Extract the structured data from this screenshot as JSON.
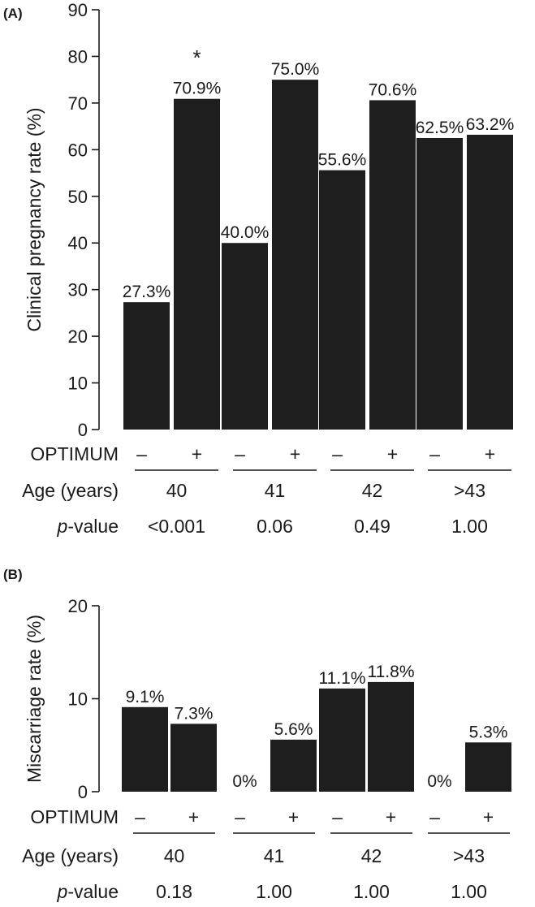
{
  "chart_data": [
    {
      "panel_label": "(A)",
      "type": "bar",
      "ylabel": "Clinical pregnancy rate (%)",
      "ylim": [
        0,
        90
      ],
      "yticks": [
        "0",
        "10",
        "20",
        "30",
        "40",
        "50",
        "60",
        "70",
        "80",
        "90"
      ],
      "optimum_label": "OPTIMUM",
      "optimum_signs": [
        "–",
        "+"
      ],
      "age_label": "Age (years)",
      "pvalue_prefix": "p",
      "pvalue_suffix": "-value",
      "groups": [
        {
          "age": "40",
          "p_value": "<0.001",
          "star": "*",
          "minus": {
            "value": 27.3,
            "label": "27.3%"
          },
          "plus": {
            "value": 70.9,
            "label": "70.9%"
          }
        },
        {
          "age": "41",
          "p_value": "0.06",
          "star": "",
          "minus": {
            "value": 40.0,
            "label": "40.0%"
          },
          "plus": {
            "value": 75.0,
            "label": "75.0%"
          }
        },
        {
          "age": "42",
          "p_value": "0.49",
          "star": "",
          "minus": {
            "value": 55.6,
            "label": "55.6%"
          },
          "plus": {
            "value": 70.6,
            "label": "70.6%"
          }
        },
        {
          "age": ">43",
          "p_value": "1.00",
          "star": "",
          "minus": {
            "value": 62.5,
            "label": "62.5%"
          },
          "plus": {
            "value": 63.2,
            "label": "63.2%"
          }
        }
      ]
    },
    {
      "panel_label": "(B)",
      "type": "bar",
      "ylabel": "Miscarriage rate (%)",
      "ylim": [
        0,
        20
      ],
      "yticks": [
        "0",
        "10",
        "20"
      ],
      "optimum_label": "OPTIMUM",
      "optimum_signs": [
        "–",
        "+"
      ],
      "age_label": "Age (years)",
      "pvalue_prefix": "p",
      "pvalue_suffix": "-value",
      "groups": [
        {
          "age": "40",
          "p_value": "0.18",
          "star": "",
          "minus": {
            "value": 9.1,
            "label": "9.1%"
          },
          "plus": {
            "value": 7.3,
            "label": "7.3%"
          }
        },
        {
          "age": "41",
          "p_value": "1.00",
          "star": "",
          "minus": {
            "value": 0,
            "label": "0%"
          },
          "plus": {
            "value": 5.6,
            "label": "5.6%"
          }
        },
        {
          "age": "42",
          "p_value": "1.00",
          "star": "",
          "minus": {
            "value": 11.1,
            "label": "11.1%"
          },
          "plus": {
            "value": 11.8,
            "label": "11.8%"
          }
        },
        {
          "age": ">43",
          "p_value": "1.00",
          "star": "",
          "minus": {
            "value": 0,
            "label": "0%"
          },
          "plus": {
            "value": 5.3,
            "label": "5.3%"
          }
        }
      ]
    }
  ],
  "colors": {
    "bar": "#1e1e1e",
    "axis": "#1a1a1a",
    "text": "#1a1a1a"
  }
}
